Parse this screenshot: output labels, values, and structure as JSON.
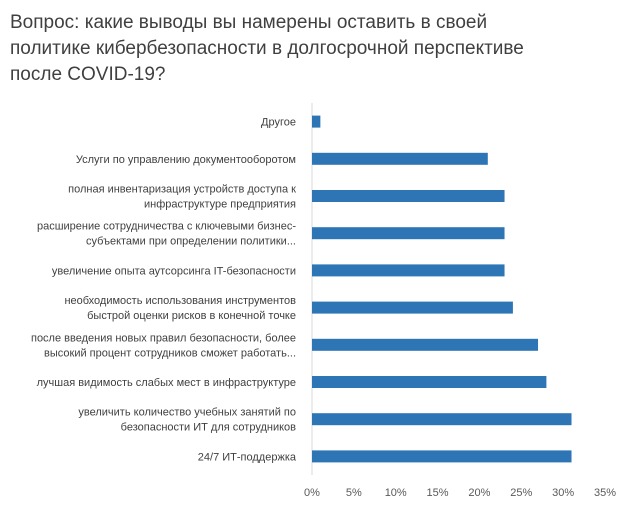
{
  "chart_data": {
    "type": "bar",
    "orientation": "horizontal",
    "title": "Вопрос: какие выводы вы намерены оставить в своей политике кибербезопасности в долгосрочной перспективе после COVID-19?",
    "categories": [
      [
        "Другое"
      ],
      [
        "Услуги по управлению документооборотом"
      ],
      [
        "полная инвентаризация устройств доступа к",
        "инфраструктуре предприятия"
      ],
      [
        "расширение сотрудничества с ключевыми бизнес-",
        "субъектами при определении политики..."
      ],
      [
        "увеличение опыта аутсорсинга IT-безопасности"
      ],
      [
        "необходимость использования инструментов",
        "быстрой оценки рисков в конечной точке"
      ],
      [
        "после введения новых правил безопасности, более",
        "высокий процент сотрудников сможет работать..."
      ],
      [
        "лучшая видимость слабых мест в инфраструктуре"
      ],
      [
        "увеличить количество учебных занятий по",
        "безопасности ИТ для сотрудников"
      ],
      [
        "24/7 ИТ-поддержка"
      ]
    ],
    "values": [
      1,
      21,
      23,
      23,
      23,
      24,
      27,
      28,
      31,
      31
    ],
    "xlim": [
      0,
      35
    ],
    "xticks": [
      "0%",
      "5%",
      "10%",
      "15%",
      "20%",
      "25%",
      "30%",
      "35%"
    ],
    "bar_color": "#2E75B6",
    "grid": false,
    "legend": "none"
  }
}
